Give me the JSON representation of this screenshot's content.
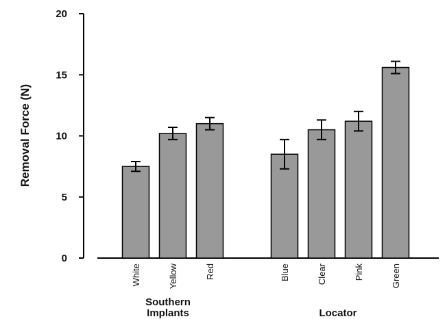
{
  "chart_data": {
    "type": "bar",
    "ylabel": "Removal Force (N)",
    "xlabel": "",
    "ylim": [
      0,
      20
    ],
    "yticks": [
      "0",
      "5",
      "10",
      "15",
      "20"
    ],
    "grid": false,
    "error_bars": true,
    "bar_color": "#999999",
    "groups": [
      {
        "label": "Southern Implants",
        "label_lines": [
          "Southern",
          "Implants"
        ],
        "categories": [
          "White",
          "Yellow",
          "Red"
        ],
        "values": [
          7.5,
          10.2,
          11.0
        ],
        "errors": [
          0.4,
          0.5,
          0.5
        ]
      },
      {
        "label": "Locator",
        "label_lines": [
          "Locator"
        ],
        "categories": [
          "Blue",
          "Clear",
          "Pink",
          "Green"
        ],
        "values": [
          8.5,
          10.5,
          11.2,
          15.6
        ],
        "errors": [
          1.2,
          0.8,
          0.8,
          0.5
        ]
      }
    ]
  }
}
